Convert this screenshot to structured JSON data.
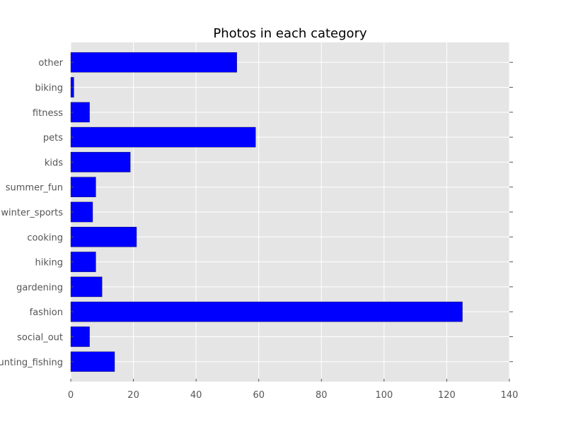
{
  "chart_data": {
    "type": "bar",
    "orientation": "horizontal",
    "title": "Photos in each category",
    "xlabel": "",
    "ylabel": "",
    "categories": [
      "hunting_fishing",
      "social_out",
      "fashion",
      "gardening",
      "hiking",
      "cooking",
      "winter_sports",
      "summer_fun",
      "kids",
      "pets",
      "fitness",
      "biking",
      "other"
    ],
    "values": [
      14,
      6,
      125,
      10,
      8,
      21,
      7,
      8,
      19,
      59,
      6,
      1,
      53
    ],
    "xlim": [
      0,
      140
    ],
    "xticks": [
      0,
      20,
      40,
      60,
      80,
      100,
      120,
      140
    ],
    "grid": true,
    "legend": "none",
    "colors": {
      "bar": "#0000ff",
      "plot_background": "#e5e5e5",
      "grid": "#ffffff",
      "tick_label": "#555555"
    }
  }
}
